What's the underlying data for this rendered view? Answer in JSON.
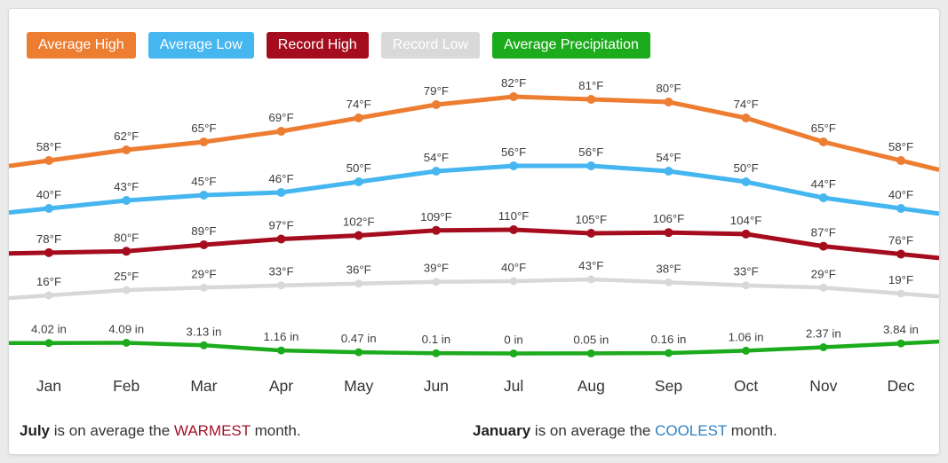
{
  "legend": [
    {
      "label": "Average High",
      "color": "#ed7d31"
    },
    {
      "label": "Average Low",
      "color": "#45b6f0"
    },
    {
      "label": "Record High",
      "color": "#a50d1e"
    },
    {
      "label": "Record Low",
      "color": "#d9d9d9"
    },
    {
      "label": "Average Precipitation",
      "color": "#1cab1c"
    }
  ],
  "chart_data": {
    "type": "line",
    "categories": [
      "Jan",
      "Feb",
      "Mar",
      "Apr",
      "May",
      "Jun",
      "Jul",
      "Aug",
      "Sep",
      "Oct",
      "Nov",
      "Dec"
    ],
    "grid": false,
    "legend_position": "top",
    "series": [
      {
        "name": "Average High",
        "unit": "°F",
        "color": "#ed7d31",
        "values": [
          58,
          62,
          65,
          69,
          74,
          79,
          82,
          81,
          80,
          74,
          65,
          58
        ]
      },
      {
        "name": "Average Low",
        "unit": "°F",
        "color": "#45b6f0",
        "values": [
          40,
          43,
          45,
          46,
          50,
          54,
          56,
          56,
          54,
          50,
          44,
          40
        ]
      },
      {
        "name": "Record High",
        "unit": "°F",
        "color": "#a50d1e",
        "values": [
          78,
          80,
          89,
          97,
          102,
          109,
          110,
          105,
          106,
          104,
          87,
          76
        ]
      },
      {
        "name": "Record Low",
        "unit": "°F",
        "color": "#d8d8d8",
        "values": [
          16,
          25,
          29,
          33,
          36,
          39,
          40,
          43,
          38,
          33,
          29,
          19
        ]
      },
      {
        "name": "Average Precipitation",
        "unit": " in",
        "color": "#1cab1c",
        "values": [
          4.02,
          4.09,
          3.13,
          1.16,
          0.47,
          0.1,
          0,
          0.05,
          0.16,
          1.06,
          2.37,
          3.84
        ]
      }
    ]
  },
  "footer": {
    "left": {
      "month": "July",
      "mid": " is on average the ",
      "highlight": "WARMEST",
      "end": " month.",
      "color": "#a31226"
    },
    "right": {
      "month": "January",
      "mid": " is on average the ",
      "highlight": "COOLEST",
      "end": " month.",
      "color": "#2e80c3"
    }
  }
}
